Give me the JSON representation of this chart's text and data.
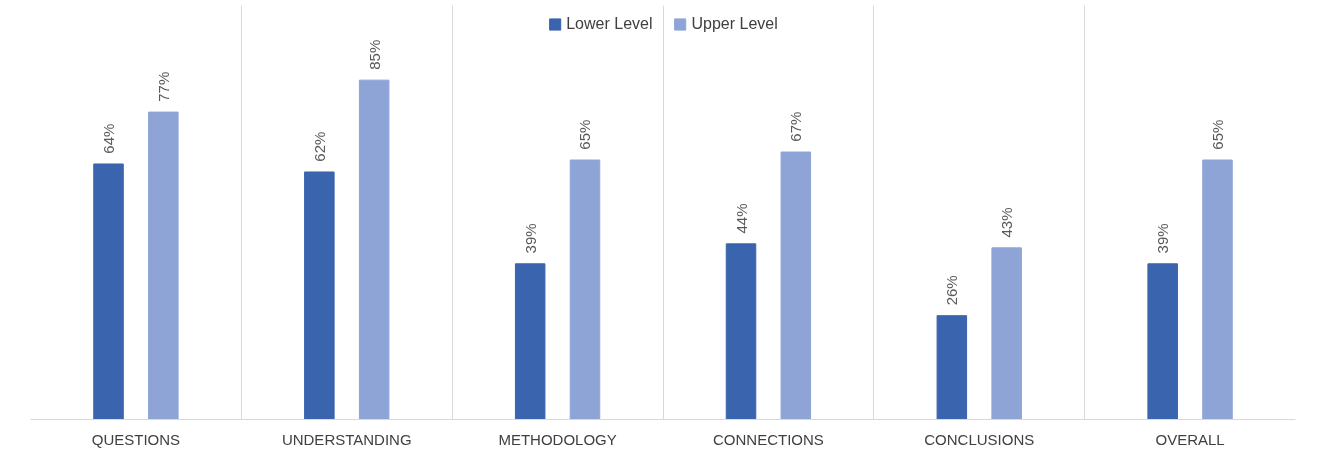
{
  "chart_data": {
    "type": "bar",
    "categories": [
      "QUESTIONS",
      "UNDERSTANDING",
      "METHODOLOGY",
      "CONNECTIONS",
      "CONCLUSIONS",
      "OVERALL"
    ],
    "series": [
      {
        "name": "Lower Level",
        "color": "#3a64ad",
        "values": [
          64,
          62,
          39,
          44,
          26,
          39
        ],
        "value_labels": [
          "64%",
          "62%",
          "39%",
          "44%",
          "26%",
          "39%"
        ]
      },
      {
        "name": "Upper Level",
        "color": "#8fa4d6",
        "values": [
          77,
          85,
          65,
          67,
          43,
          65
        ],
        "value_labels": [
          "77%",
          "85%",
          "65%",
          "67%",
          "43%",
          "65%"
        ]
      }
    ],
    "grid": "x",
    "legend": "top"
  }
}
